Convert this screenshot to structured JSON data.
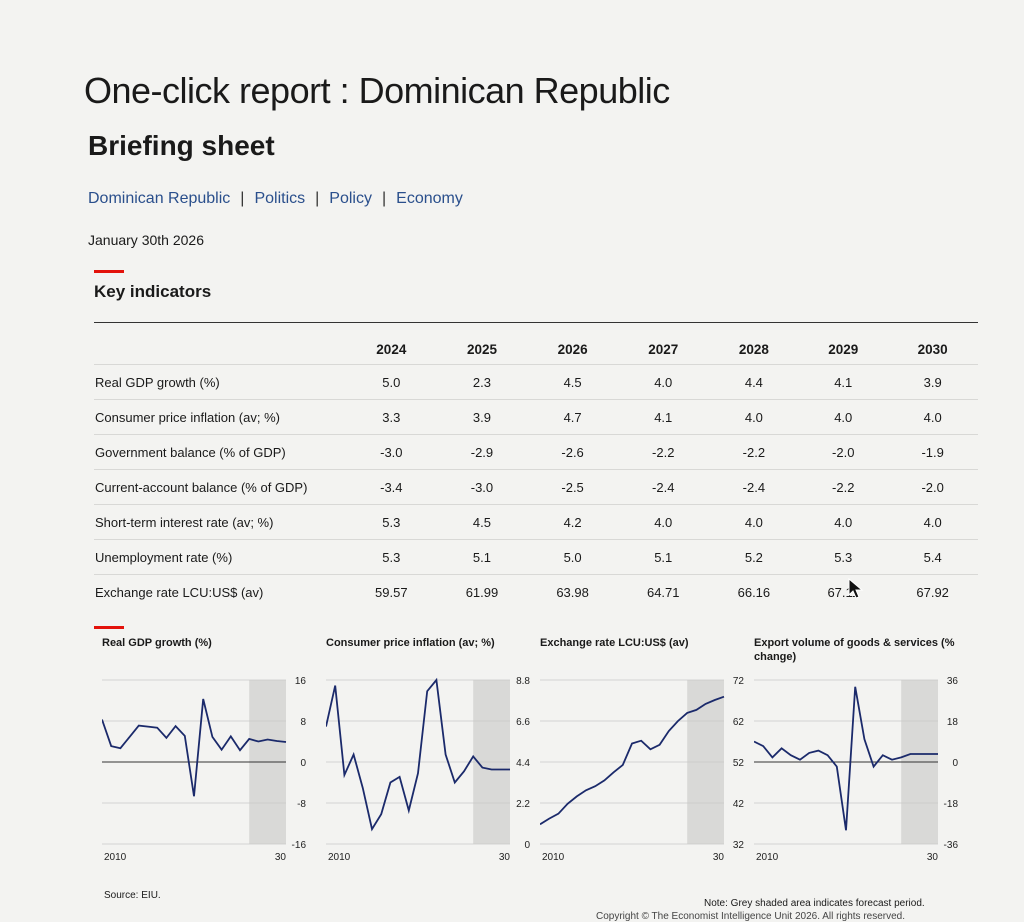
{
  "header": {
    "title": "One-click report : Dominican Republic",
    "subtitle": "Briefing sheet",
    "breadcrumb": [
      "Dominican Republic",
      "Politics",
      "Policy",
      "Economy"
    ],
    "date": "January 30th 2026"
  },
  "key_indicators": {
    "section_title": "Key indicators",
    "years": [
      "2024",
      "2025",
      "2026",
      "2027",
      "2028",
      "2029",
      "2030"
    ],
    "rows": [
      {
        "label": "Real GDP growth (%)",
        "values": [
          "5.0",
          "2.3",
          "4.5",
          "4.0",
          "4.4",
          "4.1",
          "3.9"
        ]
      },
      {
        "label": "Consumer price inflation (av; %)",
        "values": [
          "3.3",
          "3.9",
          "4.7",
          "4.1",
          "4.0",
          "4.0",
          "4.0"
        ]
      },
      {
        "label": "Government balance (% of GDP)",
        "values": [
          "-3.0",
          "-2.9",
          "-2.6",
          "-2.2",
          "-2.2",
          "-2.0",
          "-1.9"
        ]
      },
      {
        "label": "Current-account balance (% of GDP)",
        "values": [
          "-3.4",
          "-3.0",
          "-2.5",
          "-2.4",
          "-2.4",
          "-2.2",
          "-2.0"
        ]
      },
      {
        "label": "Short-term interest rate (av; %)",
        "values": [
          "5.3",
          "4.5",
          "4.2",
          "4.0",
          "4.0",
          "4.0",
          "4.0"
        ]
      },
      {
        "label": "Unemployment rate (%)",
        "values": [
          "5.3",
          "5.1",
          "5.0",
          "5.1",
          "5.2",
          "5.3",
          "5.4"
        ]
      },
      {
        "label": "Exchange rate LCU:US$ (av)",
        "values": [
          "59.57",
          "61.99",
          "63.98",
          "64.71",
          "66.16",
          "67.11",
          "67.92"
        ]
      }
    ]
  },
  "footer": {
    "source": "Source: EIU.",
    "note": "Note: Grey shaded area indicates forecast period.",
    "copyright": "Copyright © The Economist Intelligence Unit 2026. All rights reserved."
  },
  "chart_data": [
    {
      "type": "line",
      "title": "Real GDP growth (%)",
      "xticks": [
        "2010",
        "30"
      ],
      "ylim": [
        -16,
        16
      ],
      "yticks": [
        "16",
        "8",
        "0",
        "-8",
        "-16"
      ],
      "forecast_from": 2026,
      "x": [
        2010,
        2011,
        2012,
        2013,
        2014,
        2015,
        2016,
        2017,
        2018,
        2019,
        2020,
        2021,
        2022,
        2023,
        2024,
        2025,
        2026,
        2027,
        2028,
        2029,
        2030
      ],
      "values": [
        8.3,
        3.1,
        2.7,
        4.9,
        7.1,
        6.9,
        6.7,
        4.7,
        7.0,
        5.1,
        -6.7,
        12.3,
        4.9,
        2.4,
        5.0,
        2.3,
        4.5,
        4.0,
        4.4,
        4.1,
        3.9
      ]
    },
    {
      "type": "line",
      "title": "Consumer price inflation (av; %)",
      "xticks": [
        "2010",
        "30"
      ],
      "ylim": [
        0,
        8.8
      ],
      "yticks": [
        "8.8",
        "6.6",
        "4.4",
        "2.2",
        "0"
      ],
      "forecast_from": 2026,
      "x": [
        2010,
        2011,
        2012,
        2013,
        2014,
        2015,
        2016,
        2017,
        2018,
        2019,
        2020,
        2021,
        2022,
        2023,
        2024,
        2025,
        2026,
        2027,
        2028,
        2029,
        2030
      ],
      "values": [
        6.3,
        8.5,
        3.7,
        4.8,
        3.0,
        0.8,
        1.6,
        3.3,
        3.6,
        1.8,
        3.8,
        8.2,
        8.8,
        4.8,
        3.3,
        3.9,
        4.7,
        4.1,
        4.0,
        4.0,
        4.0
      ]
    },
    {
      "type": "line",
      "title": "Exchange rate LCU:US$ (av)",
      "xticks": [
        "2010",
        "30"
      ],
      "ylim": [
        32,
        72
      ],
      "yticks": [
        "72",
        "62",
        "52",
        "42",
        "32"
      ],
      "forecast_from": 2026,
      "x": [
        2010,
        2011,
        2012,
        2013,
        2014,
        2015,
        2016,
        2017,
        2018,
        2019,
        2020,
        2021,
        2022,
        2023,
        2024,
        2025,
        2026,
        2027,
        2028,
        2029,
        2030
      ],
      "values": [
        36.8,
        38.2,
        39.4,
        41.8,
        43.6,
        45.1,
        46.1,
        47.5,
        49.5,
        51.3,
        56.5,
        57.2,
        55.1,
        56.2,
        59.57,
        61.99,
        63.98,
        64.71,
        66.16,
        67.11,
        67.92
      ]
    },
    {
      "type": "line",
      "title": "Export volume of goods & services (% change)",
      "xticks": [
        "2010",
        "30"
      ],
      "ylim": [
        -36,
        36
      ],
      "yticks": [
        "36",
        "18",
        "0",
        "-18",
        "-36"
      ],
      "forecast_from": 2026,
      "x": [
        2010,
        2011,
        2012,
        2013,
        2014,
        2015,
        2016,
        2017,
        2018,
        2019,
        2020,
        2021,
        2022,
        2023,
        2024,
        2025,
        2026,
        2027,
        2028,
        2029,
        2030
      ],
      "values": [
        9.0,
        7.0,
        2.0,
        6.0,
        3.0,
        1.0,
        4.0,
        5.0,
        3.0,
        -2.0,
        -30.0,
        33.0,
        10.0,
        -2.0,
        3.0,
        1.0,
        2.0,
        3.5,
        3.5,
        3.5,
        3.5
      ]
    }
  ]
}
